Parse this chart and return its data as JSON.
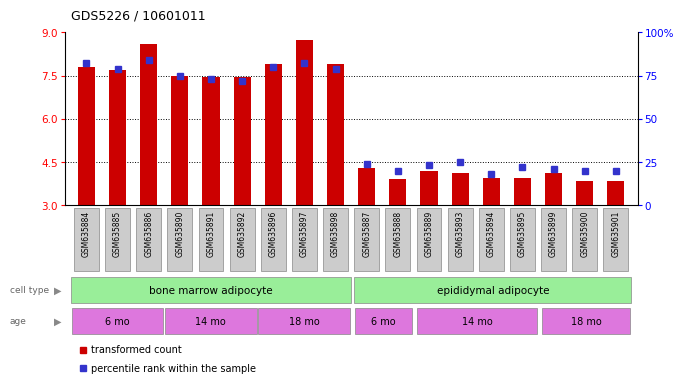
{
  "title": "GDS5226 / 10601011",
  "samples": [
    "GSM635884",
    "GSM635885",
    "GSM635886",
    "GSM635890",
    "GSM635891",
    "GSM635892",
    "GSM635896",
    "GSM635897",
    "GSM635898",
    "GSM635887",
    "GSM635888",
    "GSM635889",
    "GSM635893",
    "GSM635894",
    "GSM635895",
    "GSM635899",
    "GSM635900",
    "GSM635901"
  ],
  "red_values": [
    7.8,
    7.7,
    8.6,
    7.5,
    7.45,
    7.45,
    7.9,
    8.75,
    7.9,
    4.3,
    3.9,
    4.2,
    4.1,
    3.95,
    3.95,
    4.1,
    3.85,
    3.85
  ],
  "blue_values": [
    82,
    79,
    84,
    75,
    73,
    72,
    80,
    82,
    79,
    24,
    20,
    23,
    25,
    18,
    22,
    21,
    20,
    20
  ],
  "ylim_left": [
    3,
    9
  ],
  "ylim_right": [
    0,
    100
  ],
  "yticks_left": [
    3,
    4.5,
    6,
    7.5,
    9
  ],
  "yticks_right": [
    0,
    25,
    50,
    75,
    100
  ],
  "ytick_labels_right": [
    "0",
    "25",
    "50",
    "75",
    "100%"
  ],
  "bar_color": "#cc0000",
  "dot_color": "#3333cc",
  "background_color": "#ffffff",
  "label_transformed": "transformed count",
  "label_percentile": "percentile rank within the sample",
  "age_groups": [
    {
      "label": "6 mo",
      "s": 0,
      "e": 3
    },
    {
      "label": "14 mo",
      "s": 3,
      "e": 6
    },
    {
      "label": "18 mo",
      "s": 6,
      "e": 9
    },
    {
      "label": "6 mo",
      "s": 9,
      "e": 11
    },
    {
      "label": "14 mo",
      "s": 11,
      "e": 15
    },
    {
      "label": "18 mo",
      "s": 15,
      "e": 18
    }
  ]
}
